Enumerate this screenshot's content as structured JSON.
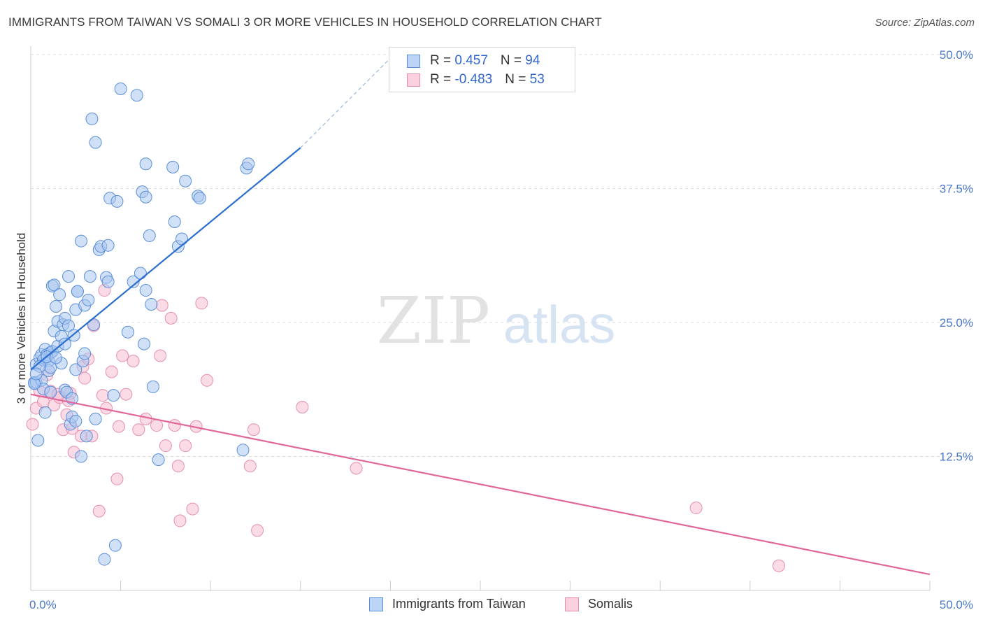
{
  "header": {
    "title": "IMMIGRANTS FROM TAIWAN VS SOMALI 3 OR MORE VEHICLES IN HOUSEHOLD CORRELATION CHART",
    "source": "Source: ZipAtlas.com"
  },
  "watermark": {
    "zip": "ZIP",
    "atlas": "atlas"
  },
  "legend_top": {
    "rows": [
      {
        "r_label": "R = ",
        "r_value": " 0.457",
        "n_label": "N = ",
        "n_value": "94"
      },
      {
        "r_label": "R = ",
        "r_value": "-0.483",
        "n_label": "N = ",
        "n_value": "53"
      }
    ]
  },
  "legend_bottom": {
    "items": [
      {
        "label": "Immigrants from Taiwan"
      },
      {
        "label": "Somalis"
      }
    ]
  },
  "colors": {
    "taiwan_fill": "#a9c6f0",
    "taiwan_stroke": "#5b8fd8",
    "taiwan_line": "#2b6fd0",
    "somali_fill": "#f7c0d2",
    "somali_stroke": "#e58fb0",
    "somali_line": "#e0679a",
    "tick": "#4a78c8",
    "grid": "#dddddd"
  },
  "chart_data": {
    "type": "scatter",
    "title": "IMMIGRANTS FROM TAIWAN VS SOMALI 3 OR MORE VEHICLES IN HOUSEHOLD CORRELATION CHART",
    "xlabel": "",
    "ylabel": "3 or more Vehicles in Household",
    "xlim": [
      0,
      50
    ],
    "ylim": [
      0,
      50
    ],
    "x_tick_labels": [
      "0.0%",
      "50.0%"
    ],
    "y_ticks": [
      12.5,
      25.0,
      37.5,
      50.0
    ],
    "y_tick_labels": [
      "12.5%",
      "25.0%",
      "37.5%",
      "50.0%"
    ],
    "grid": "horizontal dashed",
    "legend_position": "top-center",
    "series": [
      {
        "name": "Immigrants from Taiwan",
        "r": 0.457,
        "n": 94,
        "trend": {
          "x": [
            0,
            15.0
          ],
          "y": [
            20.6,
            41.3
          ],
          "dashed_extension_to": [
            20.2,
            50.0
          ]
        },
        "points": [
          [
            0.2,
            19.4
          ],
          [
            0.3,
            21.1
          ],
          [
            0.3,
            19.4
          ],
          [
            0.4,
            14.0
          ],
          [
            0.5,
            21.7
          ],
          [
            0.6,
            19.6
          ],
          [
            0.6,
            22.0
          ],
          [
            0.7,
            18.8
          ],
          [
            0.7,
            21.5
          ],
          [
            0.8,
            22.5
          ],
          [
            0.8,
            16.6
          ],
          [
            0.9,
            22.0
          ],
          [
            1.0,
            21.4
          ],
          [
            1.0,
            20.5
          ],
          [
            1.1,
            20.8
          ],
          [
            1.1,
            22.2
          ],
          [
            1.2,
            22.3
          ],
          [
            1.1,
            18.5
          ],
          [
            1.2,
            28.4
          ],
          [
            1.3,
            28.5
          ],
          [
            1.3,
            24.2
          ],
          [
            1.4,
            26.5
          ],
          [
            1.5,
            25.1
          ],
          [
            1.5,
            22.8
          ],
          [
            1.6,
            27.6
          ],
          [
            1.7,
            21.2
          ],
          [
            1.7,
            23.7
          ],
          [
            1.8,
            24.8
          ],
          [
            1.9,
            25.4
          ],
          [
            1.9,
            23.0
          ],
          [
            1.9,
            18.7
          ],
          [
            2.0,
            18.5
          ],
          [
            2.1,
            29.3
          ],
          [
            2.1,
            24.7
          ],
          [
            2.2,
            15.5
          ],
          [
            2.3,
            17.9
          ],
          [
            2.3,
            16.2
          ],
          [
            2.4,
            23.8
          ],
          [
            2.5,
            26.2
          ],
          [
            2.5,
            15.8
          ],
          [
            2.5,
            20.6
          ],
          [
            2.6,
            27.9
          ],
          [
            2.6,
            27.9
          ],
          [
            2.8,
            32.6
          ],
          [
            2.8,
            12.5
          ],
          [
            2.9,
            21.4
          ],
          [
            3.0,
            22.1
          ],
          [
            3.0,
            26.6
          ],
          [
            3.1,
            14.4
          ],
          [
            3.2,
            27.1
          ],
          [
            3.3,
            29.3
          ],
          [
            3.4,
            44.0
          ],
          [
            3.5,
            24.8
          ],
          [
            3.6,
            16.0
          ],
          [
            3.6,
            41.8
          ],
          [
            3.8,
            31.8
          ],
          [
            3.9,
            32.1
          ],
          [
            4.1,
            2.9
          ],
          [
            4.2,
            29.2
          ],
          [
            4.3,
            28.8
          ],
          [
            4.3,
            32.2
          ],
          [
            4.4,
            36.6
          ],
          [
            4.6,
            18.2
          ],
          [
            4.7,
            4.2
          ],
          [
            4.8,
            36.3
          ],
          [
            5.0,
            46.8
          ],
          [
            5.4,
            24.1
          ],
          [
            5.7,
            28.8
          ],
          [
            5.9,
            46.2
          ],
          [
            6.1,
            29.6
          ],
          [
            6.2,
            37.2
          ],
          [
            6.3,
            23.0
          ],
          [
            6.4,
            36.7
          ],
          [
            6.4,
            39.8
          ],
          [
            6.4,
            28.0
          ],
          [
            6.6,
            33.1
          ],
          [
            6.7,
            26.7
          ],
          [
            6.8,
            19.0
          ],
          [
            7.1,
            12.2
          ],
          [
            7.9,
            39.5
          ],
          [
            8.0,
            34.4
          ],
          [
            8.2,
            32.1
          ],
          [
            8.4,
            32.8
          ],
          [
            8.6,
            38.2
          ],
          [
            9.3,
            36.8
          ],
          [
            9.4,
            36.6
          ],
          [
            11.8,
            13.1
          ],
          [
            12.0,
            39.4
          ],
          [
            12.1,
            39.8
          ],
          [
            0.2,
            19.3
          ],
          [
            0.5,
            20.9
          ],
          [
            0.9,
            21.8
          ],
          [
            1.4,
            21.7
          ],
          [
            0.3,
            20.2
          ]
        ]
      },
      {
        "name": "Somalis",
        "r": -0.483,
        "n": 53,
        "trend": {
          "x": [
            0,
            50
          ],
          "y": [
            18.3,
            1.5
          ]
        },
        "points": [
          [
            0.1,
            15.5
          ],
          [
            0.3,
            17.0
          ],
          [
            0.5,
            18.6
          ],
          [
            0.7,
            17.6
          ],
          [
            0.9,
            20.1
          ],
          [
            1.1,
            18.6
          ],
          [
            1.3,
            17.3
          ],
          [
            1.5,
            18.3
          ],
          [
            1.6,
            18.0
          ],
          [
            1.8,
            15.0
          ],
          [
            2.0,
            16.4
          ],
          [
            2.1,
            17.7
          ],
          [
            2.2,
            18.4
          ],
          [
            2.3,
            15.1
          ],
          [
            2.4,
            12.9
          ],
          [
            2.8,
            14.4
          ],
          [
            2.9,
            20.9
          ],
          [
            3.0,
            19.8
          ],
          [
            3.2,
            21.6
          ],
          [
            3.4,
            14.4
          ],
          [
            3.5,
            24.7
          ],
          [
            3.8,
            7.4
          ],
          [
            4.0,
            18.2
          ],
          [
            4.1,
            28.0
          ],
          [
            4.2,
            17.0
          ],
          [
            4.5,
            20.4
          ],
          [
            4.8,
            10.4
          ],
          [
            4.9,
            15.3
          ],
          [
            5.1,
            21.9
          ],
          [
            5.3,
            18.3
          ],
          [
            5.7,
            21.4
          ],
          [
            6.0,
            15.0
          ],
          [
            6.4,
            16.0
          ],
          [
            7.0,
            15.4
          ],
          [
            7.2,
            21.9
          ],
          [
            7.3,
            26.6
          ],
          [
            7.5,
            13.5
          ],
          [
            7.8,
            25.4
          ],
          [
            8.0,
            15.4
          ],
          [
            8.2,
            11.6
          ],
          [
            8.3,
            6.5
          ],
          [
            8.6,
            13.5
          ],
          [
            9.0,
            7.6
          ],
          [
            9.2,
            15.3
          ],
          [
            9.5,
            26.8
          ],
          [
            9.8,
            19.6
          ],
          [
            12.2,
            11.6
          ],
          [
            12.4,
            15.0
          ],
          [
            12.6,
            5.6
          ],
          [
            15.1,
            17.1
          ],
          [
            18.1,
            11.4
          ],
          [
            37.0,
            7.7
          ],
          [
            41.6,
            2.3
          ]
        ]
      }
    ]
  }
}
